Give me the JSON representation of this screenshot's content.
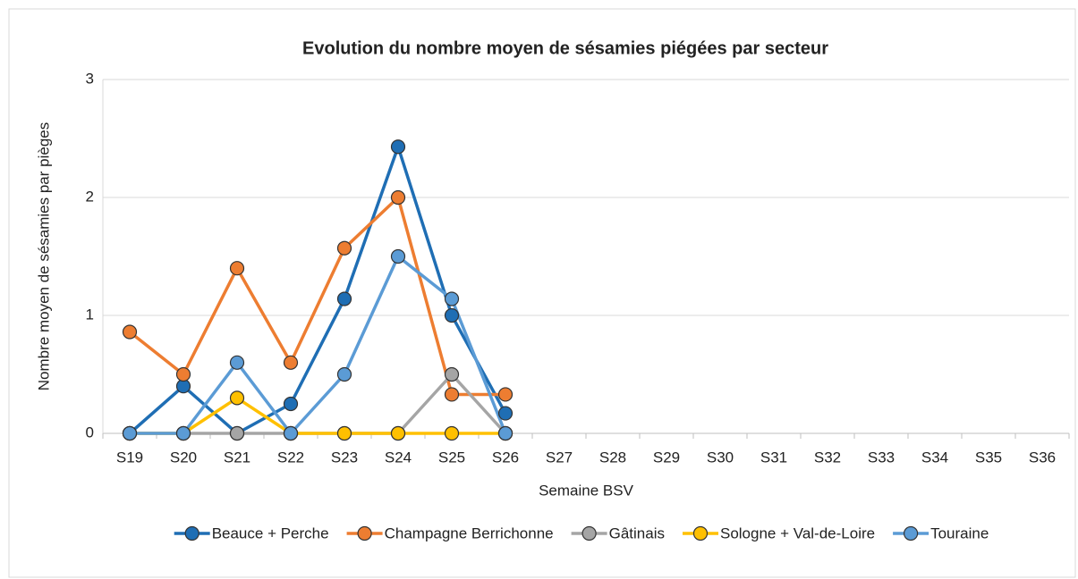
{
  "chart_data": {
    "type": "line",
    "title": "Evolution du nombre moyen de sésamies piégées par secteur",
    "x_label": "Semaine BSV",
    "y_label": "Nombre moyen de sésamies par pièges",
    "categories": [
      "S19",
      "S20",
      "S21",
      "S22",
      "S23",
      "S24",
      "S25",
      "S26",
      "S27",
      "S28",
      "S29",
      "S30",
      "S31",
      "S32",
      "S33",
      "S34",
      "S35",
      "S36"
    ],
    "ylim": [
      0,
      3
    ],
    "yticks": [
      0,
      1,
      2,
      3
    ],
    "grid": true,
    "legend": "bottom",
    "series": [
      {
        "name": "Beauce + Perche",
        "color": "#1f6eb4",
        "values": [
          0,
          0.4,
          0,
          0.25,
          1.14,
          2.43,
          1,
          0.17,
          null,
          null,
          null,
          null,
          null,
          null,
          null,
          null,
          null,
          null
        ]
      },
      {
        "name": "Champagne Berrichonne",
        "color": "#ed7d31",
        "values": [
          0.86,
          0.5,
          1.4,
          0.6,
          1.57,
          2,
          0.33,
          0.33,
          null,
          null,
          null,
          null,
          null,
          null,
          null,
          null,
          null,
          null
        ]
      },
      {
        "name": "Gâtinais",
        "color": "#a5a5a5",
        "values": [
          0,
          0,
          0,
          0,
          0,
          0,
          0.5,
          0,
          null,
          null,
          null,
          null,
          null,
          null,
          null,
          null,
          null,
          null
        ]
      },
      {
        "name": "Sologne + Val-de-Loire",
        "color": "#ffc000",
        "values": [
          0,
          0,
          0.3,
          0,
          0,
          0,
          0,
          0,
          null,
          null,
          null,
          null,
          null,
          null,
          null,
          null,
          null,
          null
        ]
      },
      {
        "name": "Touraine",
        "color": "#5b9bd5",
        "values": [
          0,
          0,
          0.6,
          0,
          0.5,
          1.5,
          1.14,
          0,
          null,
          null,
          null,
          null,
          null,
          null,
          null,
          null,
          null,
          null
        ]
      }
    ]
  }
}
